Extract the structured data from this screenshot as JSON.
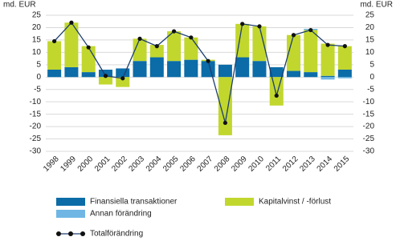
{
  "chart_data": {
    "type": "stacked-bar-line",
    "ylabel": "md. EUR",
    "y2label": "md. EUR",
    "categories": [
      "1998",
      "1999",
      "2000",
      "2001",
      "2002",
      "2003",
      "2004",
      "2005",
      "2006",
      "2007",
      "2008",
      "2009",
      "2010",
      "2011",
      "2012",
      "2013",
      "2014",
      "2015"
    ],
    "series": [
      {
        "name": "Finansiella transaktioner",
        "color": "#0b6ca8",
        "type": "bar",
        "values": [
          3,
          4,
          2,
          3,
          3.5,
          6.5,
          8,
          6.5,
          7,
          6.5,
          5,
          8,
          6.5,
          4,
          2.5,
          2,
          0.5,
          3
        ]
      },
      {
        "name": "Kapitalvinst / -förlust",
        "color": "#c2d72e",
        "type": "bar",
        "values": [
          11.5,
          18,
          10.5,
          -3,
          -4,
          9,
          5,
          12,
          9,
          0.5,
          -23.5,
          13.5,
          14,
          -11.5,
          14.5,
          17,
          13,
          9.5
        ]
      },
      {
        "name": "Annan förändring",
        "color": "#6fb6e4",
        "type": "bar",
        "values": [
          0,
          0,
          0,
          0,
          0,
          0,
          0,
          0,
          0,
          0,
          0,
          0,
          0,
          0,
          0,
          0.5,
          -1,
          -0.5
        ]
      },
      {
        "name": "Totalförändring",
        "color": "#1d3f70",
        "type": "line",
        "values": [
          14.5,
          22,
          12,
          0.5,
          -0.5,
          15.5,
          12.5,
          18.5,
          16,
          6.5,
          -18.5,
          21.5,
          20.5,
          -7.5,
          17,
          19,
          13,
          12.5
        ]
      }
    ],
    "ylim": [
      -30,
      25
    ],
    "yticks": [
      -30,
      -25,
      -20,
      -15,
      -10,
      -5,
      0,
      5,
      10,
      15,
      20,
      25
    ],
    "y2lim": [
      -30,
      25
    ],
    "y2ticks": [
      -30,
      -25,
      -20,
      -15,
      -10,
      -5,
      0,
      5,
      10,
      15,
      20,
      25
    ],
    "grid": true
  }
}
